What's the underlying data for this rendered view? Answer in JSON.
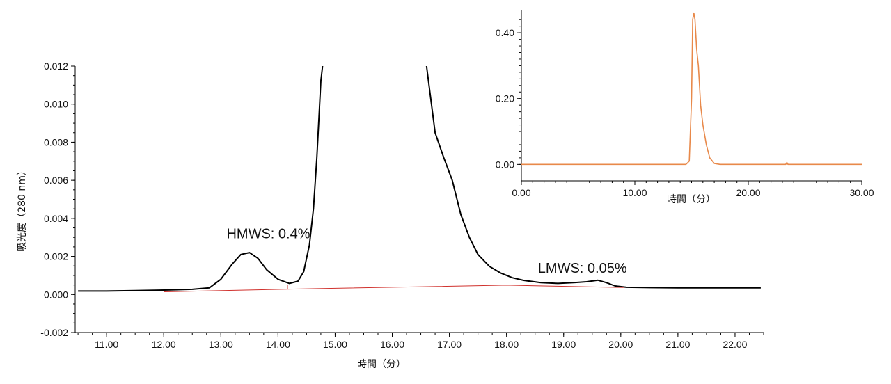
{
  "chart_data": [
    {
      "type": "line",
      "xlabel": "時間（分）",
      "ylabel": "吸光度（280 nm）",
      "xlim": [
        10.45,
        22.5
      ],
      "ylim": [
        -0.002,
        0.012
      ],
      "xticks": [
        "11.00",
        "12.00",
        "13.00",
        "14.00",
        "15.00",
        "16.00",
        "17.00",
        "18.00",
        "19.00",
        "20.00",
        "21.00",
        "22.00"
      ],
      "yticks": [
        "-0.002",
        "0.000",
        "0.002",
        "0.004",
        "0.006",
        "0.008",
        "0.010",
        "0.012"
      ],
      "annotations": [
        {
          "text": "HMWS: 0.4%",
          "x": 13.1,
          "y": 0.00295
        },
        {
          "text": "LMWS: 0.05%",
          "x": 18.55,
          "y": 0.00115
        }
      ],
      "series": [
        {
          "color": "#000000",
          "x": [
            10.5,
            11.0,
            11.5,
            12.0,
            12.5,
            12.8,
            13.0,
            13.2,
            13.35,
            13.5,
            13.65,
            13.8,
            14.0,
            14.2,
            14.35,
            14.45,
            14.55,
            14.62,
            14.68,
            14.72,
            14.75,
            14.78,
            16.6,
            16.75,
            16.9,
            17.05,
            17.2,
            17.35,
            17.5,
            17.7,
            17.9,
            18.1,
            18.3,
            18.6,
            18.9,
            19.2,
            19.4,
            19.6,
            19.75,
            19.9,
            20.1,
            20.5,
            21.0,
            21.5,
            22.0,
            22.45
          ],
          "y": [
            0.00018,
            0.00018,
            0.0002,
            0.00023,
            0.00027,
            0.00035,
            0.0008,
            0.0016,
            0.0021,
            0.0022,
            0.0019,
            0.0013,
            0.0008,
            0.00058,
            0.0007,
            0.0012,
            0.0026,
            0.0045,
            0.0072,
            0.0095,
            0.0112,
            0.012,
            0.012,
            0.0085,
            0.0072,
            0.006,
            0.0042,
            0.003,
            0.0021,
            0.00148,
            0.00112,
            0.00088,
            0.00074,
            0.00062,
            0.00058,
            0.00063,
            0.00067,
            0.00075,
            0.00062,
            0.00045,
            0.00038,
            0.00036,
            0.00035,
            0.00035,
            0.00035,
            0.00035
          ]
        },
        {
          "color": "#d0312d",
          "x": [
            12.0,
            14.2,
            18.0,
            20.05
          ],
          "y": [
            0.00014,
            0.00028,
            0.00049,
            0.00037
          ]
        }
      ]
    },
    {
      "type": "line",
      "xlabel": "時間（分）",
      "xlim": [
        0,
        30
      ],
      "ylim": [
        -0.05,
        0.47
      ],
      "xticks": [
        "0.00",
        "10.00",
        "20.00",
        "30.00"
      ],
      "yticks": [
        "0.00",
        "0.20",
        "0.40"
      ],
      "series": [
        {
          "color": "#e8894a",
          "x": [
            0,
            14.5,
            14.8,
            15.0,
            15.1,
            15.2,
            15.3,
            15.45,
            15.6,
            15.8,
            16.0,
            16.3,
            16.6,
            17.0,
            17.5,
            23.3,
            23.4,
            23.5,
            30
          ],
          "y": [
            0,
            0,
            0.01,
            0.2,
            0.44,
            0.46,
            0.44,
            0.35,
            0.3,
            0.18,
            0.12,
            0.06,
            0.02,
            0.003,
            0,
            0,
            0.006,
            0,
            0
          ]
        }
      ]
    }
  ]
}
